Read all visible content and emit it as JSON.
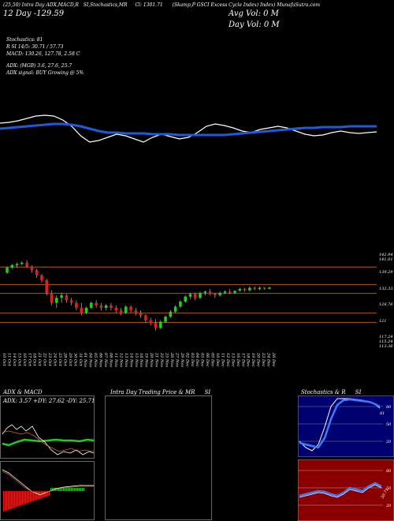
{
  "header": {
    "line1": [
      "(25,50) Intra Day ADX,MACD,R",
      "SI,Stochastics,MR",
      "Cl: 1301.71",
      "(Skamp,P GSCI Excess Cycle Index) Index) MunafaSutra.com"
    ],
    "range_text": "12 Day -129.59",
    "avg_vol_text": "Avg Vol: 0 M",
    "day_vol_text": "Day Vol: 0 M"
  },
  "info": {
    "stochastics": "Stochastics: 81",
    "rsi": "R                  SI 14/5: 30.71 / 57.73",
    "macd": "MACD: 130.26, 127.78, 2.58 C",
    "adx": "ADX:                          (MGB) 3.6, 27.6, 25.7",
    "adx_signal": "ADX signal:                        BUY Growing @ 5%"
  },
  "colors": {
    "background": "#000000",
    "ma_line": "#1f5bd8",
    "up_candle": "#22cc22",
    "down_candle": "#e02020",
    "level_line": "#c86420",
    "rsi_panel_bg": "#000070",
    "mrsi_panel_bg": "#8a0000"
  },
  "chart_data": [
    {
      "type": "line",
      "series": [
        {
          "values": [
            56,
            55,
            53,
            50,
            47,
            46,
            47,
            52,
            60,
            72,
            80,
            78,
            74,
            70,
            72,
            76,
            80,
            74,
            70,
            73,
            76,
            74,
            68,
            60,
            57,
            59,
            62,
            66,
            68,
            64,
            62,
            60,
            62,
            66,
            70,
            72,
            71,
            68,
            66,
            68,
            69,
            68,
            67
          ]
        },
        {
          "values": [
            63,
            62,
            61,
            60,
            59,
            58,
            57,
            57,
            58,
            60,
            63,
            66,
            68,
            68,
            69,
            69,
            69,
            70,
            70,
            70,
            71,
            71,
            71,
            71,
            71,
            71,
            70,
            69,
            68,
            67,
            66,
            65,
            64,
            63,
            62,
            62,
            61,
            61,
            61,
            60,
            60,
            60,
            60
          ]
        }
      ]
    },
    {
      "type": "candlestick",
      "ylabels": [
        "142.94",
        "141.01",
        "139.29",
        "132.33",
        "128.76",
        "121",
        "117.24",
        "115.24",
        "113.36"
      ],
      "xlabels": [
        "10 Oct",
        "11 Oct",
        "14 Oct",
        "15 Oct",
        "16 Oct",
        "17 Oct",
        "18 Oct",
        "21 Oct",
        "22 Oct",
        "23 Oct",
        "24 Oct",
        "25 Oct",
        "28 Oct",
        "29 Oct",
        "30 Oct",
        "31 Oct",
        "01 Nov",
        "04 Nov",
        "05 Nov",
        "06 Nov",
        "07 Nov",
        "08 Nov",
        "11 Nov",
        "12 Nov",
        "13 Nov",
        "14 Nov",
        "15 Nov",
        "18 Nov",
        "19 Nov",
        "20 Nov",
        "21 Nov",
        "22 Nov",
        "25 Nov",
        "26 Nov",
        "27 Nov",
        "29 Nov",
        "02 Dec",
        "03 Dec",
        "04 Dec",
        "05 Dec",
        "06 Dec",
        "09 Dec",
        "10 Dec",
        "11 Dec",
        "12 Dec",
        "13 Dec",
        "16 Dec",
        "17 Dec",
        "18 Dec",
        "19 Dec",
        "20 Dec",
        "23 Dec",
        "24 Dec",
        "26 Dec"
      ],
      "levels": [
        139.29,
        132.33,
        128.76,
        121,
        117.24
      ],
      "ylim": [
        112,
        145
      ],
      "ohlc": [
        [
          137,
          139.5,
          136.5,
          139
        ],
        [
          139,
          140.5,
          138.5,
          140
        ],
        [
          140,
          141,
          139,
          140.5
        ],
        [
          140.5,
          141.5,
          140,
          141
        ],
        [
          141,
          142,
          139,
          139.5
        ],
        [
          139.5,
          140,
          137,
          138
        ],
        [
          138,
          138.5,
          135,
          136
        ],
        [
          136,
          136.5,
          133,
          134
        ],
        [
          134,
          134.5,
          128,
          129
        ],
        [
          129,
          130,
          124,
          125
        ],
        [
          125,
          128,
          123,
          127
        ],
        [
          127,
          129,
          125,
          128
        ],
        [
          128,
          128.5,
          125,
          126
        ],
        [
          126,
          127,
          124,
          125
        ],
        [
          125,
          126,
          122,
          123
        ],
        [
          123,
          125,
          120,
          121
        ],
        [
          121,
          123.5,
          120.5,
          123
        ],
        [
          123,
          125.5,
          122.5,
          125
        ],
        [
          125,
          126,
          123,
          124
        ],
        [
          124,
          125,
          122,
          123
        ],
        [
          123,
          124.5,
          122,
          124
        ],
        [
          124,
          125,
          122,
          123
        ],
        [
          123,
          124,
          121,
          122
        ],
        [
          122,
          123,
          120,
          121
        ],
        [
          121,
          124,
          120.5,
          123.5
        ],
        [
          123.5,
          124,
          121,
          122
        ],
        [
          122,
          123,
          120,
          121
        ],
        [
          121,
          122,
          119,
          120
        ],
        [
          120,
          120.5,
          117,
          118
        ],
        [
          118,
          119,
          116,
          117
        ],
        [
          117,
          118.5,
          114,
          115
        ],
        [
          115,
          118,
          114.5,
          117.5
        ],
        [
          117.5,
          120,
          117,
          119.5
        ],
        [
          119.5,
          122,
          119,
          121.5
        ],
        [
          121.5,
          124,
          121,
          123.5
        ],
        [
          123.5,
          126,
          123,
          125.5
        ],
        [
          125.5,
          128,
          125,
          127.5
        ],
        [
          127.5,
          129,
          126.5,
          128.5
        ],
        [
          128.5,
          129,
          126,
          127
        ],
        [
          127,
          129.5,
          126.5,
          129
        ],
        [
          129,
          130,
          128,
          129.5
        ],
        [
          129.5,
          130.5,
          128,
          128.5
        ],
        [
          128.5,
          129,
          127,
          128
        ],
        [
          128,
          129.5,
          127.5,
          129
        ],
        [
          129,
          130,
          128.5,
          129.5
        ],
        [
          129.5,
          130.5,
          128.5,
          129
        ],
        [
          129,
          130,
          128.5,
          129.8
        ],
        [
          129.8,
          131,
          129.5,
          130.5
        ],
        [
          130.5,
          131,
          129.5,
          130
        ],
        [
          130,
          131.5,
          129.5,
          131
        ],
        [
          131,
          131.5,
          130,
          130.5
        ],
        [
          130.5,
          131.5,
          130,
          131
        ],
        [
          131,
          131.2,
          130.2,
          130.6
        ],
        [
          130.6,
          131.4,
          130.4,
          131.1
        ]
      ]
    }
  ],
  "panels": {
    "adx_title": "ADX  & MACD",
    "adx_readout": "ADX: 3.57  +DY: 27.62  -DY: 25.71",
    "intraday_title": "Intra Day Trading Price  & MR",
    "intraday_title2": "SI",
    "stoch_title": "Stochastics & R",
    "stoch_title2": "SI",
    "stoch_ticks": [
      "80",
      "50",
      "20"
    ],
    "mrsi_ticks": [
      "80",
      "50",
      "20"
    ],
    "stoch_value": "81",
    "mrsi_value": "30.71"
  }
}
